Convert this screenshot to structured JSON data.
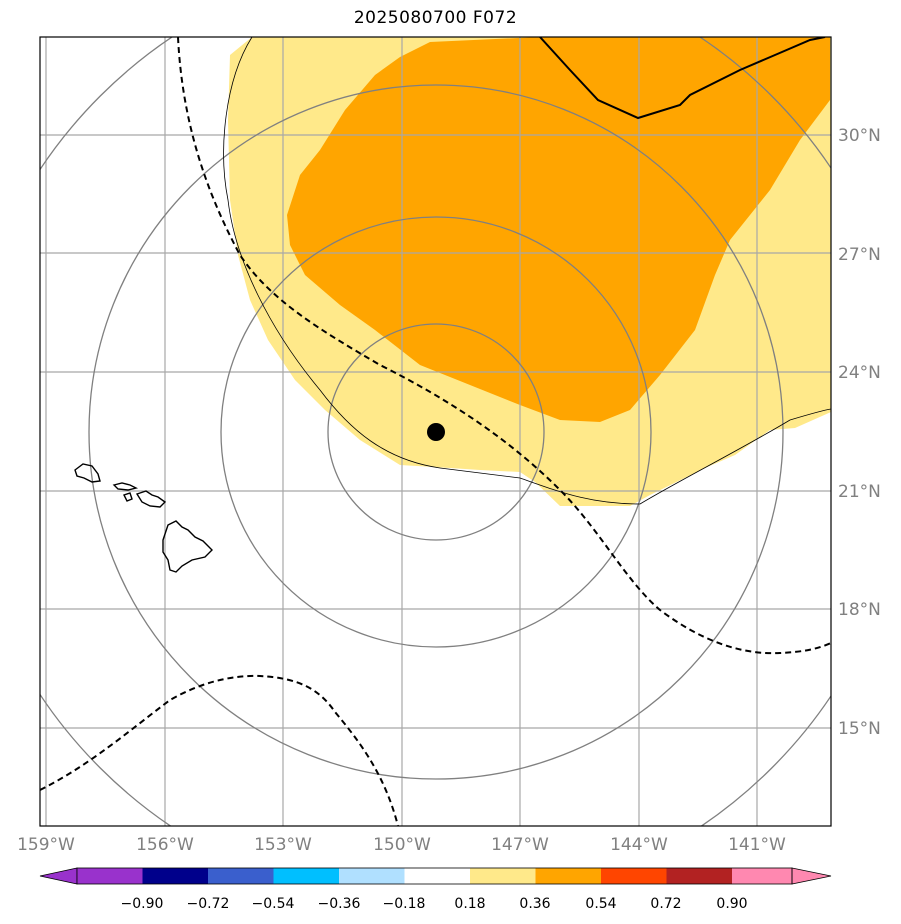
{
  "title": "2025080700 F072",
  "map": {
    "lat_ticks": [
      "30°N",
      "27°N",
      "24°N",
      "21°N",
      "18°N",
      "15°N"
    ],
    "lon_ticks": [
      "159°W",
      "156°W",
      "153°W",
      "150°W",
      "147°W",
      "144°W",
      "141°W"
    ],
    "marker": {
      "lon": -148.9,
      "lat": 22.5
    }
  },
  "colorbar": {
    "ticks": [
      "−0.90",
      "−0.72",
      "−0.54",
      "−0.36",
      "−0.18",
      "0.18",
      "0.36",
      "0.54",
      "0.72",
      "0.90"
    ],
    "colors": [
      "#9932cc",
      "#00008b",
      "#3a5fcd",
      "#00bfff",
      "#b0e0ff",
      "#ffffff",
      "#ffe98a",
      "#ffa500",
      "#ff4500",
      "#b22222",
      "#ff88b0"
    ]
  }
}
